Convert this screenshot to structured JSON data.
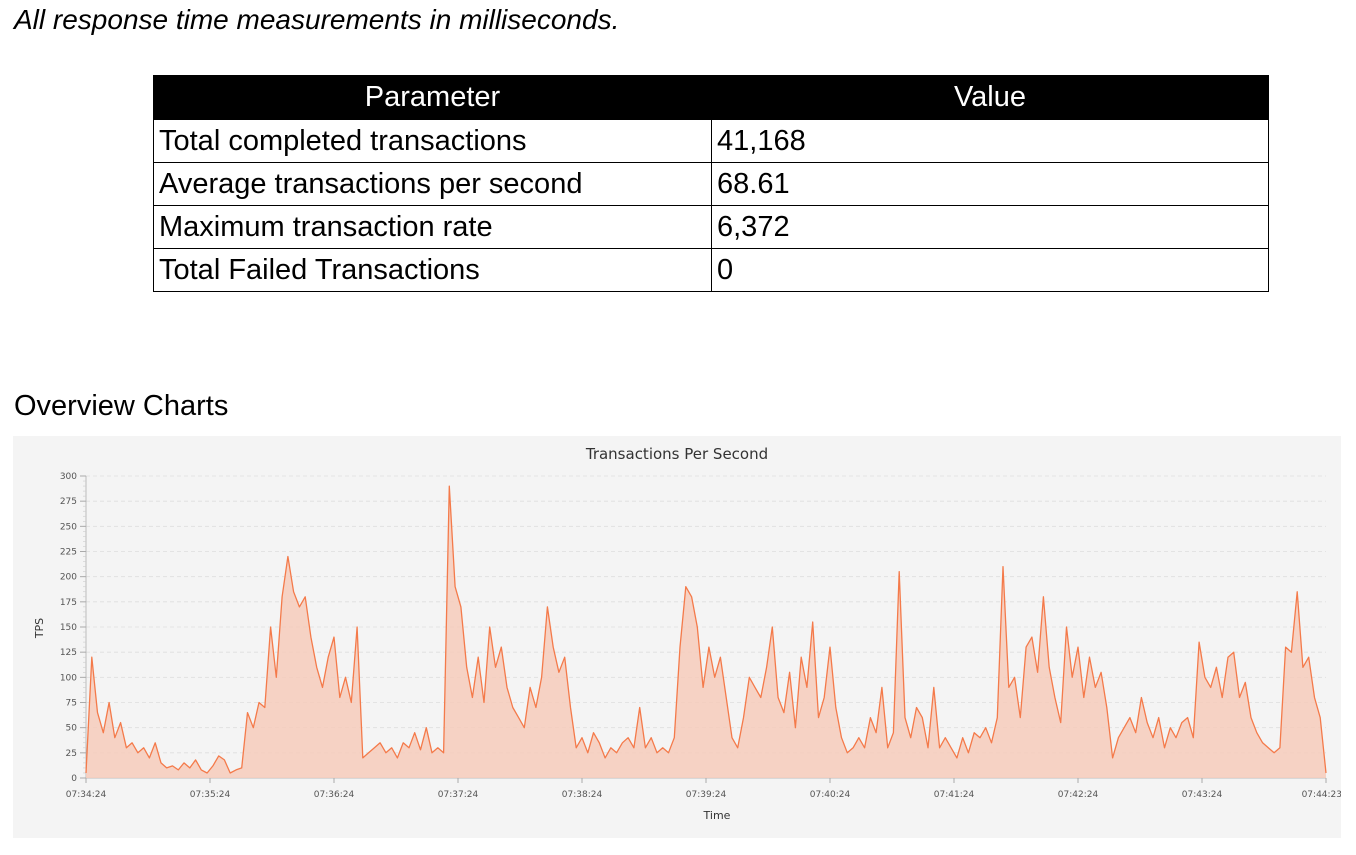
{
  "note": "All response time measurements in milliseconds.",
  "table": {
    "headers": [
      "Parameter",
      "Value"
    ],
    "rows": [
      [
        "Total completed transactions",
        "41,168"
      ],
      [
        "Average transactions per second",
        "68.61"
      ],
      [
        "Maximum transaction rate",
        "6,372"
      ],
      [
        "Total Failed Transactions",
        "0"
      ]
    ]
  },
  "section_title": "Overview Charts",
  "chart_data": {
    "type": "area",
    "title": "Transactions Per Second",
    "xlabel": "Time",
    "ylabel": "TPS",
    "ylim": [
      0,
      300
    ],
    "yticks": [
      0,
      25,
      50,
      75,
      100,
      125,
      150,
      175,
      200,
      225,
      250,
      275,
      300
    ],
    "xticks": [
      "07:34:24",
      "07:35:24",
      "07:36:24",
      "07:37:24",
      "07:38:24",
      "07:39:24",
      "07:40:24",
      "07:41:24",
      "07:42:24",
      "07:43:24",
      "07:44:23"
    ],
    "grid": true,
    "line_color": "#f47a4a",
    "fill_color": "#f6cbbb",
    "series": [
      {
        "values": [
          5,
          120,
          65,
          45,
          75,
          40,
          55,
          30,
          35,
          25,
          30,
          20,
          35,
          15,
          10,
          12,
          8,
          15,
          10,
          18,
          8,
          5,
          12,
          22,
          18,
          5,
          8,
          10,
          65,
          50,
          75,
          70,
          150,
          100,
          180,
          220,
          185,
          170,
          180,
          140,
          110,
          90,
          120,
          140,
          80,
          100,
          75,
          150,
          20,
          25,
          30,
          35,
          25,
          30,
          20,
          35,
          30,
          45,
          28,
          50,
          25,
          30,
          25,
          290,
          190,
          170,
          110,
          80,
          120,
          75,
          150,
          110,
          130,
          90,
          70,
          60,
          50,
          90,
          70,
          100,
          170,
          130,
          105,
          120,
          70,
          30,
          40,
          25,
          45,
          35,
          20,
          30,
          25,
          35,
          40,
          30,
          70,
          30,
          40,
          25,
          30,
          25,
          40,
          130,
          190,
          180,
          150,
          90,
          130,
          100,
          120,
          80,
          40,
          30,
          60,
          100,
          90,
          80,
          110,
          150,
          80,
          65,
          105,
          50,
          120,
          90,
          155,
          60,
          80,
          130,
          70,
          40,
          25,
          30,
          40,
          30,
          60,
          45,
          90,
          30,
          45,
          205,
          60,
          40,
          70,
          60,
          30,
          90,
          30,
          40,
          30,
          20,
          40,
          25,
          45,
          40,
          50,
          35,
          60,
          210,
          90,
          100,
          60,
          130,
          140,
          105,
          180,
          110,
          80,
          55,
          150,
          100,
          130,
          80,
          120,
          90,
          105,
          70,
          20,
          40,
          50,
          60,
          45,
          80,
          55,
          40,
          60,
          30,
          50,
          40,
          55,
          60,
          40,
          135,
          100,
          90,
          110,
          80,
          120,
          125,
          80,
          95,
          60,
          45,
          35,
          30,
          25,
          30,
          130,
          125,
          185,
          110,
          120,
          80,
          60,
          5
        ]
      }
    ]
  }
}
